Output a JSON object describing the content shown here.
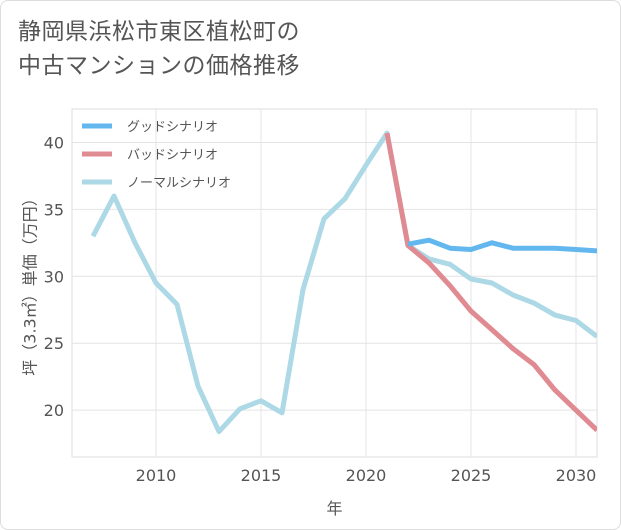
{
  "title_lines": [
    "静岡県浜松市東区植松町の",
    "中古マンションの価格推移"
  ],
  "chart_data": {
    "type": "line",
    "title": "静岡県浜松市東区植松町の中古マンションの価格推移",
    "xlabel": "年",
    "ylabel": "坪（3.3㎡）単価（万円）",
    "xlim": [
      2006,
      2031
    ],
    "ylim": [
      16.5,
      42.5
    ],
    "xticks": [
      2010,
      2015,
      2020,
      2025,
      2030
    ],
    "yticks": [
      20,
      25,
      30,
      35,
      40
    ],
    "grid": true,
    "legend_position": "top-left",
    "series": [
      {
        "name": "ノーマルシナリオ",
        "color": "#add8e6",
        "x": [
          2007,
          2008,
          2009,
          2010,
          2011,
          2012,
          2013,
          2014,
          2015,
          2016,
          2017,
          2018,
          2019,
          2020,
          2021,
          2022,
          2023,
          2024,
          2025,
          2026,
          2027,
          2028,
          2029,
          2030,
          2031
        ],
        "values": [
          33.0,
          36.0,
          32.5,
          29.5,
          27.9,
          21.8,
          18.4,
          20.1,
          20.7,
          19.8,
          29.0,
          34.3,
          35.8,
          38.3,
          40.7,
          32.3,
          31.3,
          30.9,
          29.8,
          29.5,
          28.6,
          28.0,
          27.1,
          26.7,
          25.5
        ]
      },
      {
        "name": "バッドシナリオ",
        "color": "#e08a91",
        "x": [
          2021,
          2022,
          2023,
          2024,
          2025,
          2026,
          2027,
          2028,
          2029,
          2030,
          2031
        ],
        "values": [
          40.7,
          32.3,
          31.0,
          29.3,
          27.4,
          26.0,
          24.6,
          23.4,
          21.5,
          20.0,
          18.5
        ]
      },
      {
        "name": "グッドシナリオ",
        "color": "#63b7ef",
        "x": [
          2022,
          2023,
          2024,
          2025,
          2026,
          2027,
          2028,
          2029,
          2030,
          2031
        ],
        "values": [
          32.4,
          32.7,
          32.1,
          32.0,
          32.5,
          32.1,
          32.1,
          32.1,
          32.0,
          31.9
        ]
      }
    ],
    "legend": [
      "グッドシナリオ",
      "バッドシナリオ",
      "ノーマルシナリオ"
    ]
  }
}
